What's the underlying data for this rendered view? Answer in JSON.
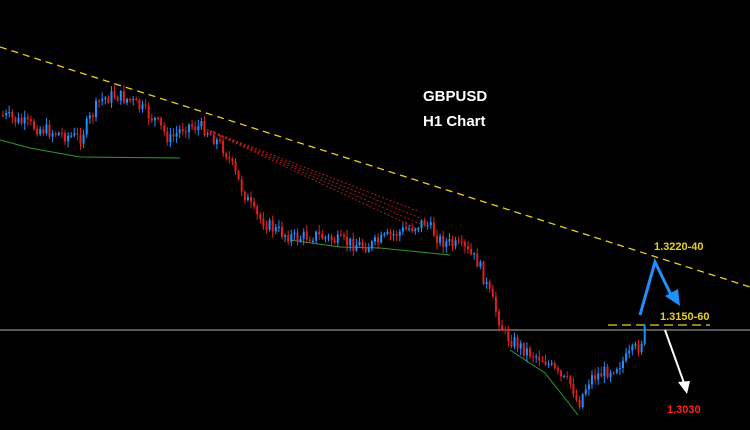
{
  "chart_data": {
    "type": "candlestick",
    "title": "GBPUSD",
    "subtitle": "H1 Chart",
    "colors": {
      "background": "#000000",
      "bull": "#1e90ff",
      "bear": "#e0201e",
      "trendline": "#e8d020",
      "support": "#2e9a2e",
      "fan": "#d02020",
      "hline": "#b0b0b0",
      "target_up": "#1e90ff",
      "target_down": "#ffffff"
    },
    "levels": [
      {
        "label": "1.3220-40",
        "color": "#e8d020"
      },
      {
        "label": "1.3150-60",
        "color": "#e8d020"
      },
      {
        "label": "1.3030",
        "color": "#ff2020"
      }
    ]
  }
}
